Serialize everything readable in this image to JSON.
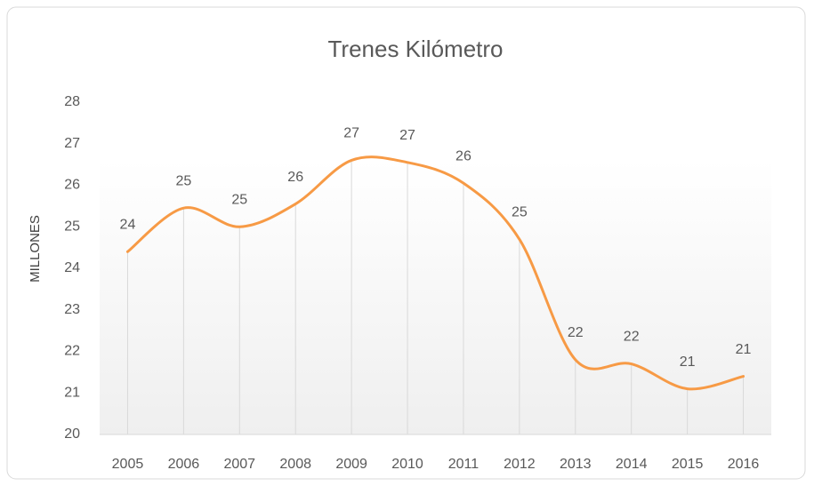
{
  "chart_data": {
    "type": "line",
    "title": "Trenes Kilómetro",
    "y_label": "MILLONES",
    "categories": [
      "2005",
      "2006",
      "2007",
      "2008",
      "2009",
      "2010",
      "2011",
      "2012",
      "2013",
      "2014",
      "2015",
      "2016"
    ],
    "values": [
      24.4,
      25.45,
      25.0,
      25.55,
      26.6,
      26.55,
      26.05,
      24.7,
      21.8,
      21.7,
      21.1,
      21.4
    ],
    "value_labels": [
      "24",
      "25",
      "25",
      "26",
      "27",
      "27",
      "26",
      "25",
      "22",
      "22",
      "21",
      "21"
    ],
    "color": "#f79a45",
    "smooth": true,
    "drop_lines": true,
    "ylim": [
      20,
      28
    ],
    "yticks": [
      20,
      21,
      22,
      23,
      24,
      25,
      26,
      27,
      28
    ]
  }
}
